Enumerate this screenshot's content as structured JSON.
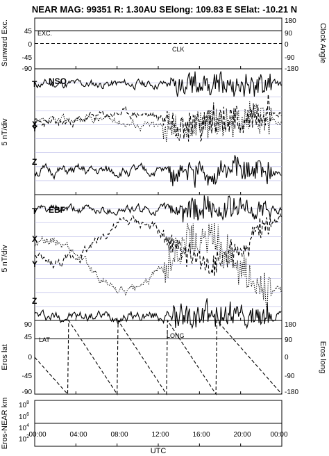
{
  "title": "NEAR MAG: 99351  R: 1.30AU  SElong: 109.83 E  SElat:  -10.21 N",
  "x_axis": {
    "label": "UTC",
    "ticks": [
      "00:00",
      "04:00",
      "08:00",
      "12:00",
      "16:00",
      "20:00",
      "00:00"
    ]
  },
  "panels": {
    "sunward": {
      "left_label": "Sunward Exc.",
      "right_label": "Clock Angle",
      "left_ticks": [
        "45",
        "0",
        "-45",
        "-90"
      ],
      "right_ticks": [
        "180",
        "90",
        "0",
        "-90",
        "-180"
      ],
      "annotations": [
        "EXC.",
        "CLK"
      ]
    },
    "nso": {
      "name": "NSO",
      "ylabel": "5 nT/div",
      "trace_labels": [
        "T",
        "X",
        "Y",
        "Z"
      ]
    },
    "ebf": {
      "name": "EBF",
      "ylabel": "5 nT/div",
      "trace_labels": [
        "T",
        "X",
        "Y",
        "Z"
      ]
    },
    "eros": {
      "left_label": "Eros lat",
      "right_label": "Eros long",
      "left_ticks": [
        "90",
        "45",
        "0",
        "-45",
        "-90"
      ],
      "right_ticks": [
        "180",
        "90",
        "0",
        "-90",
        "-180"
      ],
      "annotations": [
        "LAT",
        "LONG"
      ]
    },
    "distance": {
      "left_label": "Eros-NEAR km",
      "ticks": [
        {
          "base": "10",
          "exp": "8"
        },
        {
          "base": "10",
          "exp": "6"
        },
        {
          "base": "10",
          "exp": "4"
        },
        {
          "base": "10",
          "exp": "2"
        }
      ]
    }
  },
  "chart_data": [
    {
      "type": "line",
      "panel": "Sunward Exc. / Clock Angle",
      "x_unit": "hours UTC",
      "xlim": [
        0,
        24
      ],
      "series": [
        {
          "name": "EXC.",
          "style": "solid",
          "x": [
            0,
            24
          ],
          "values": [
            45,
            45
          ],
          "axis": "left",
          "ylim": [
            -90,
            90
          ]
        },
        {
          "name": "CLK",
          "style": "dashed",
          "x": [
            0,
            24
          ],
          "values": [
            0,
            0
          ],
          "axis": "right",
          "ylim": [
            -180,
            180
          ]
        }
      ]
    },
    {
      "type": "line",
      "panel": "NSO",
      "x_unit": "hours UTC",
      "xlim": [
        0,
        24
      ],
      "series": [
        {
          "name": "T",
          "style": "solid",
          "level": 0.0,
          "seed": 11,
          "amp": 0.5,
          "dstart": 13.2,
          "damp": 1.6
        },
        {
          "name": "X",
          "style": "dashed",
          "level": -2.6,
          "seed": 23,
          "amp": 0.5,
          "dstart": 12.5,
          "damp": 2.2,
          "wave": 0.4
        },
        {
          "name": "Y",
          "style": "dotted",
          "level": -2.9,
          "seed": 37,
          "amp": 0.5,
          "dstart": 12.5,
          "damp": 2.2,
          "wave": 0.3
        },
        {
          "name": "Z",
          "style": "solid",
          "level": -6.6,
          "seed": 51,
          "amp": 0.6,
          "dstart": 13.0,
          "damp": 1.4
        }
      ]
    },
    {
      "type": "line",
      "panel": "EBF",
      "x_unit": "hours UTC",
      "xlim": [
        0,
        24
      ],
      "series": [
        {
          "name": "T",
          "style": "solid",
          "level": 0.0,
          "seed": 61,
          "amp": 0.5,
          "dstart": 13.2,
          "damp": 1.6
        },
        {
          "name": "X",
          "style": "dashed",
          "level": -2.5,
          "seed": 73,
          "amp": 0.6,
          "dstart": 12.5,
          "damp": 1.6,
          "wave": 1.6
        },
        {
          "name": "Y",
          "style": "dotted",
          "level": -4.2,
          "seed": 89,
          "amp": 0.6,
          "dstart": 12.5,
          "damp": 2.4,
          "wave": 2.0
        },
        {
          "name": "Z",
          "style": "solid",
          "level": -8.0,
          "seed": 97,
          "amp": 0.6,
          "dstart": 13.0,
          "damp": 1.6
        }
      ]
    },
    {
      "type": "line",
      "panel": "Eros lat / Eros long",
      "x_unit": "hours UTC",
      "xlim": [
        0,
        24
      ],
      "series": [
        {
          "name": "LAT",
          "style": "solid",
          "axis": "left",
          "ylim": [
            -90,
            90
          ],
          "x": [
            0,
            24
          ],
          "values": [
            45,
            45
          ]
        },
        {
          "name": "LONG",
          "style": "dashed",
          "axis": "right",
          "ylim": [
            -180,
            180
          ],
          "x": [
            0,
            3.2,
            3.3,
            8.0,
            8.1,
            12.8,
            12.9,
            17.6,
            17.7,
            24
          ],
          "values": [
            0,
            -180,
            180,
            -180,
            180,
            -180,
            180,
            -180,
            180,
            -180
          ]
        }
      ]
    },
    {
      "type": "line",
      "panel": "Eros-NEAR km",
      "x_unit": "hours UTC",
      "xlim": [
        0,
        24
      ],
      "y_scale": "log",
      "ylim": [
        1,
        100000000
      ],
      "series": [
        {
          "name": "",
          "style": "solid",
          "x": [
            0,
            24
          ],
          "values": [
            10000,
            10000
          ]
        }
      ]
    }
  ]
}
